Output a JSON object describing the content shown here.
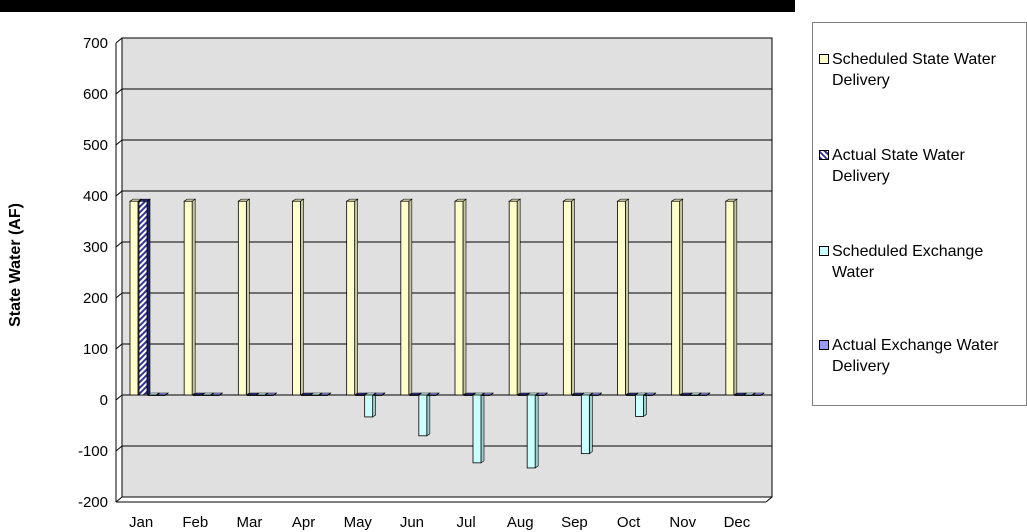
{
  "chart_data": {
    "type": "bar",
    "categories": [
      "Jan",
      "Feb",
      "Mar",
      "Apr",
      "May",
      "Jun",
      "Jul",
      "Aug",
      "Sep",
      "Oct",
      "Nov",
      "Dec"
    ],
    "series": [
      {
        "name": "Scheduled State Water Delivery",
        "color": "#ffffcc",
        "values": [
          380,
          380,
          380,
          380,
          380,
          380,
          380,
          380,
          380,
          380,
          380,
          380
        ]
      },
      {
        "name": "Actual State Water Delivery",
        "color": "#333399",
        "pattern": "diagonal-hatch",
        "values": [
          380,
          0,
          0,
          0,
          0,
          0,
          0,
          0,
          0,
          0,
          0,
          0
        ]
      },
      {
        "name": "Scheduled Exchange Water",
        "color": "#ccffff",
        "values": [
          0,
          0,
          0,
          0,
          -43,
          -80,
          -133,
          -143,
          -115,
          -42,
          0,
          0
        ]
      },
      {
        "name": "Actual Exchange Water Delivery",
        "color": "#9999ff",
        "values": [
          0,
          0,
          0,
          0,
          0,
          0,
          0,
          0,
          0,
          0,
          0,
          0
        ]
      }
    ],
    "yticks": [
      700,
      600,
      500,
      400,
      300,
      200,
      100,
      0,
      -100,
      -200
    ],
    "ylim": [
      -200,
      700
    ],
    "ylabel": "State Water (AF)",
    "xlabel": "",
    "title": "",
    "grid": true,
    "legend_position": "right",
    "plot_background": "#e0e0e0"
  }
}
